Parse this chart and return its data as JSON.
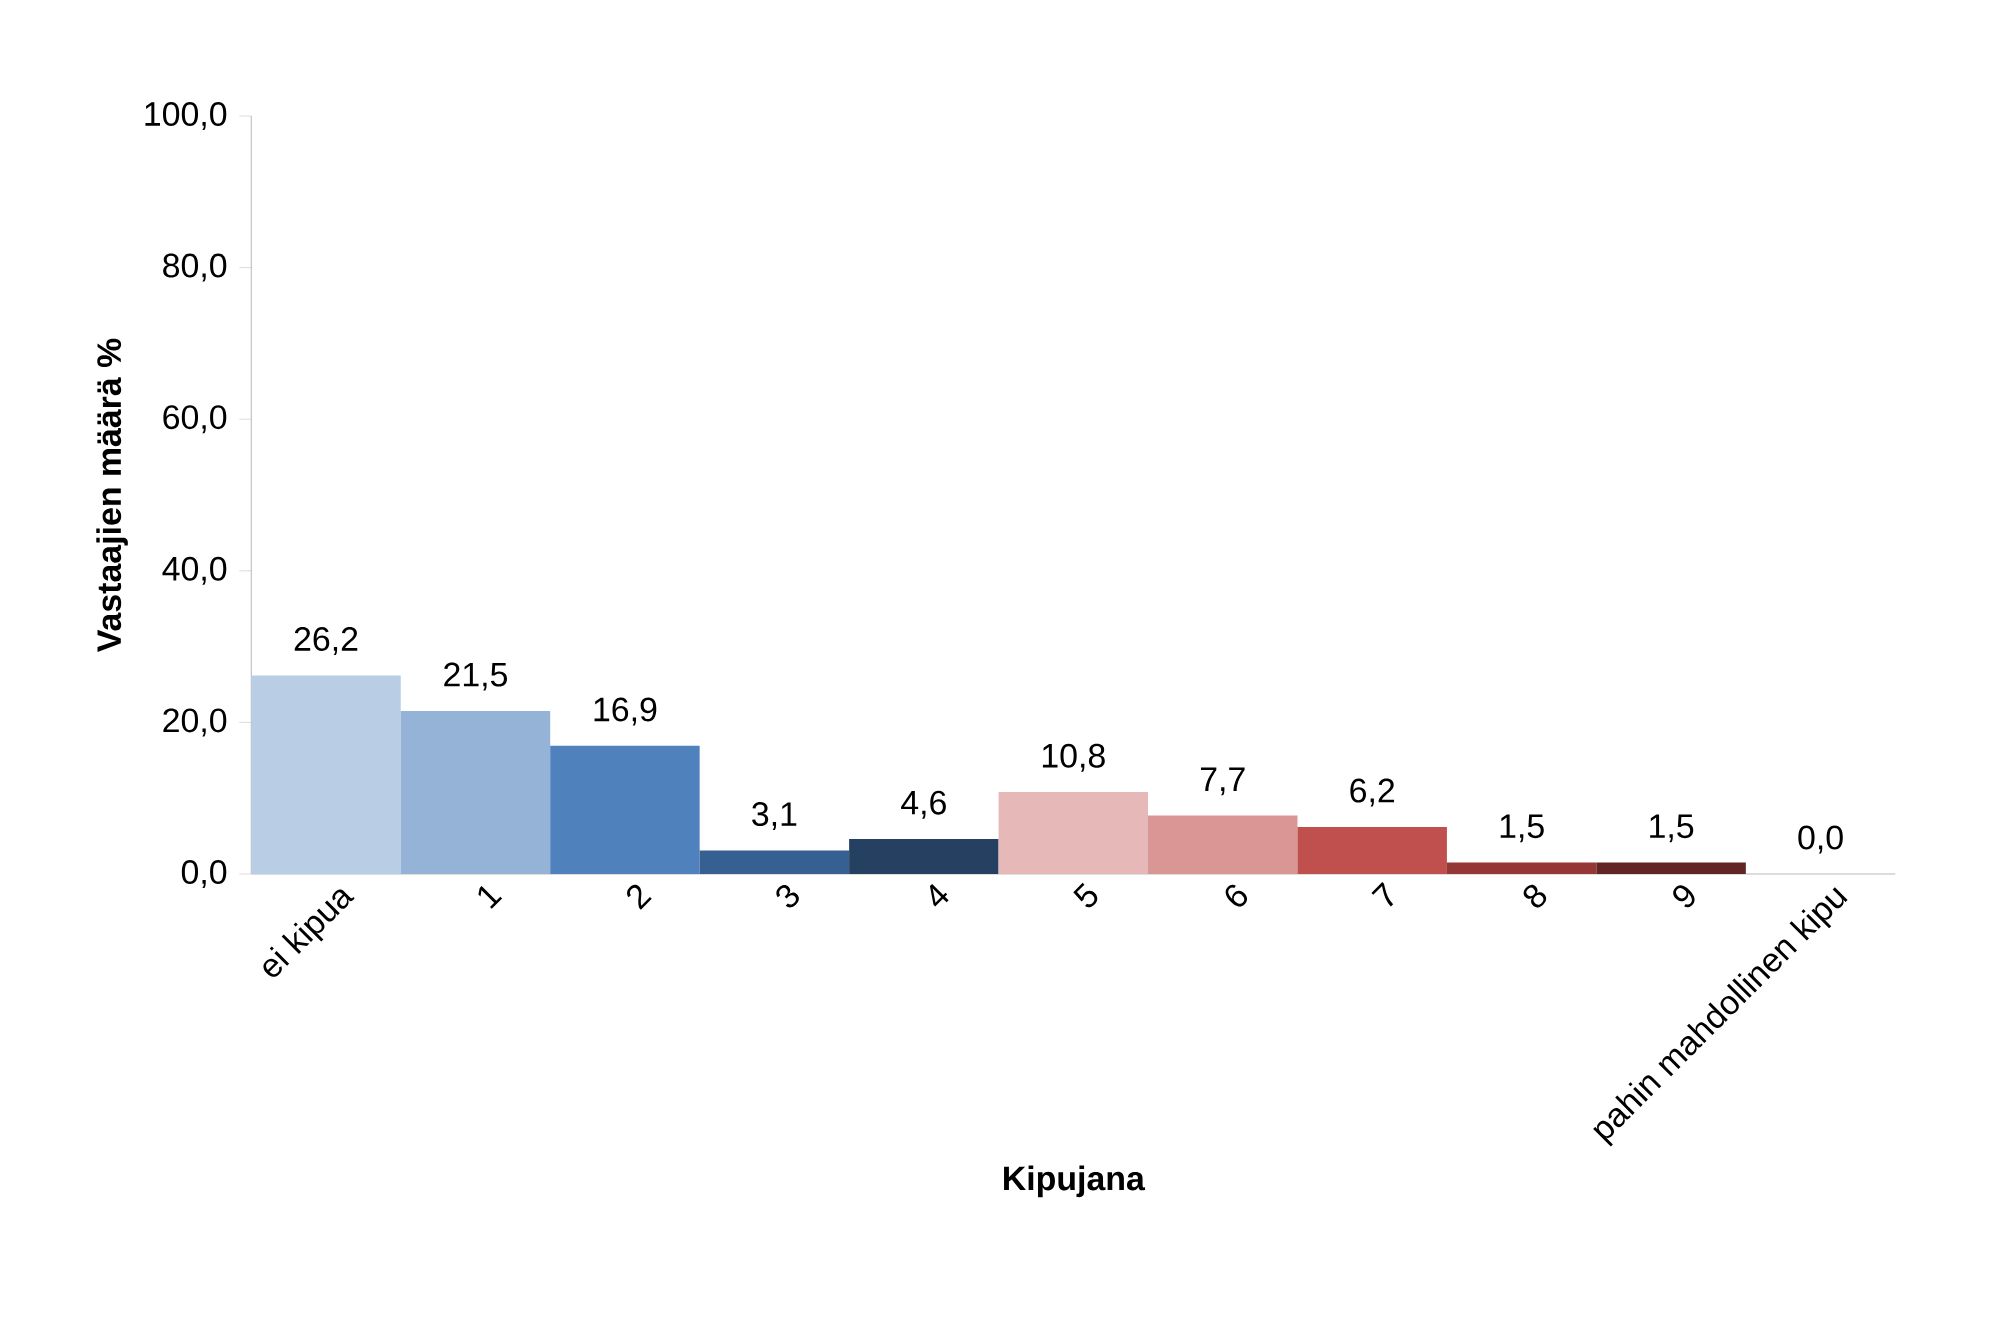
{
  "chart_data": {
    "type": "bar",
    "xlabel": "Kipujana",
    "ylabel": "Vastaajien määrä %",
    "categories": [
      "ei kipua",
      "1",
      "2",
      "3",
      "4",
      "5",
      "6",
      "7",
      "8",
      "9",
      "pahin mahdollinen kipu"
    ],
    "values": [
      26.2,
      21.5,
      16.9,
      3.1,
      4.6,
      10.8,
      7.7,
      6.2,
      1.5,
      1.5,
      0.0
    ],
    "value_labels": [
      "26,2",
      "21,5",
      "16,9",
      "3,1",
      "4,6",
      "10,8",
      "7,7",
      "6,2",
      "1,5",
      "1,5",
      "0,0"
    ],
    "colors": [
      "#b9cde5",
      "#95b3d7",
      "#4f81bd",
      "#376092",
      "#254061",
      "#e6b9b8",
      "#d99694",
      "#c0504d",
      "#953735",
      "#632523",
      "#3f1413"
    ],
    "ylim": [
      0,
      100
    ],
    "yticks": [
      {
        "value": 0,
        "label": "0,0"
      },
      {
        "value": 20,
        "label": "20,0"
      },
      {
        "value": 40,
        "label": "40,0"
      },
      {
        "value": 60,
        "label": "60,0"
      },
      {
        "value": 80,
        "label": "80,0"
      },
      {
        "value": 100,
        "label": "100,0"
      }
    ]
  }
}
